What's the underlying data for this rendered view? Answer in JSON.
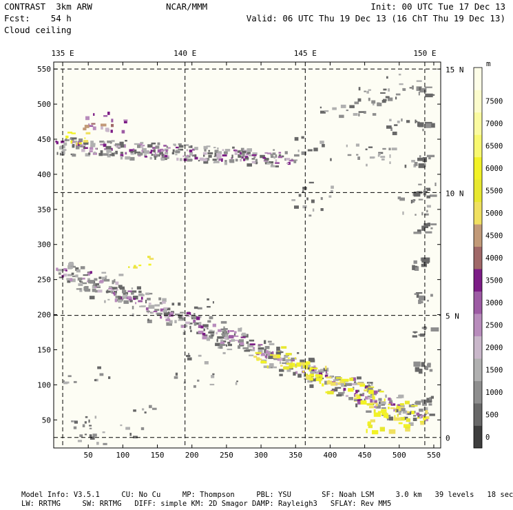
{
  "header": {
    "left_line1": "CONTRAST  3km ARW",
    "left_line2": "Fcst:    54 h",
    "left_line3": "Cloud ceiling",
    "center_line1": "NCAR/MMM",
    "right_line1": "Init: 00 UTC Tue 17 Dec 13",
    "right_line2": "Valid: 06 UTC Thu 19 Dec 13 (16 ChT Thu 19 Dec 13)"
  },
  "map": {
    "field": "Cloud ceiling",
    "top_longitude_labels": [
      "135 E",
      "140 E",
      "145 E",
      "150 E"
    ],
    "right_latitude_labels": [
      "15 N",
      "10 N",
      "5 N",
      "0"
    ],
    "x_tick_labels": [
      "50",
      "100",
      "150",
      "200",
      "250",
      "300",
      "350",
      "400",
      "450",
      "500",
      "550"
    ],
    "y_tick_labels": [
      "50",
      "100",
      "150",
      "200",
      "250",
      "300",
      "350",
      "400",
      "450",
      "500",
      "550"
    ],
    "x_range": [
      0,
      560
    ],
    "y_range": [
      10,
      560
    ],
    "grid_x": [
      13,
      190,
      364,
      537
    ],
    "grid_y": [
      25,
      199,
      374,
      550
    ]
  },
  "colorbar": {
    "unit": "m",
    "labels": [
      "0",
      "500",
      "1000",
      "1500",
      "2000",
      "2500",
      "3000",
      "3500",
      "4000",
      "4500",
      "5000",
      "5500",
      "6000",
      "6500",
      "7000",
      "7500"
    ],
    "colors": [
      "#3e3e3e",
      "#686868",
      "#8e8e8e",
      "#b0b0b0",
      "#c9b7ca",
      "#b88cbc",
      "#9d5ba4",
      "#7c1c86",
      "#a06868",
      "#c29a78",
      "#f0e060",
      "#e8e830",
      "#f2f226",
      "#f8f870",
      "#fafaa0",
      "#fcfccc",
      "#fefee8"
    ]
  },
  "footer": {
    "line1": "Model Info: V3.5.1     CU: No Cu     MP: Thompson     PBL: YSU       SF: Noah LSM     3.0 km   39 levels   18 sec",
    "line2": "LW: RRTMG     SW: RRTMG   DIFF: simple KM: 2D Smagor DAMP: Rayleigh3   SFLAY: Rev MM5"
  }
}
